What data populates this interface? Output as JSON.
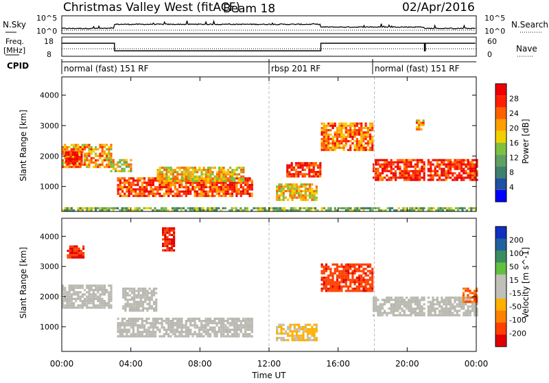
{
  "header": {
    "title": "Christmas Valley West (fitACF)",
    "beam": "Beam 18",
    "date": "02/Apr/2016"
  },
  "top_panels": {
    "nsky_label": "N.Sky",
    "nsearch_label": "N.Search",
    "nsky_ticks": [
      "10^5",
      "10^0"
    ],
    "nsearch_ticks": [
      "10^5",
      "10^0"
    ],
    "freq_label": "Freq.",
    "freq_unit": "[MHz]",
    "freq_ticks": [
      "18",
      "8"
    ],
    "nave_label": "Nave",
    "nave_ticks": [
      "60",
      "0"
    ],
    "cpid_label": "CPID",
    "cpid_segments": [
      {
        "label": "normal (fast) 151 RF",
        "start_hour": 0,
        "end_hour": 12
      },
      {
        "label": "rbsp 201 RF",
        "start_hour": 12,
        "end_hour": 18
      },
      {
        "label": "normal (fast) 151 RF",
        "start_hour": 18,
        "end_hour": 24
      }
    ]
  },
  "x_axis": {
    "label": "Time UT",
    "ticks": [
      "00:00",
      "04:00",
      "08:00",
      "12:00",
      "16:00",
      "20:00",
      "00:00"
    ]
  },
  "colors": {
    "power_scale": [
      "#0000ff",
      "#2050a0",
      "#3f8070",
      "#60a060",
      "#80c040",
      "#f0d000",
      "#ffa000",
      "#ff6000",
      "#ff2000",
      "#ee0000"
    ],
    "velocity_scale": [
      "#e00000",
      "#ff4000",
      "#ff8000",
      "#ffb000",
      "#c0c0b8",
      "#c0c0b8",
      "#60c040",
      "#3c8c60",
      "#2060a0",
      "#1030c0"
    ],
    "ground_scatter": "#b8b8b0"
  },
  "chart_data": [
    {
      "type": "heatmap",
      "name": "power",
      "ylabel": "Slant Range [km]",
      "ylim": [
        180,
        4600
      ],
      "yticks": [
        1000,
        2000,
        3000,
        4000
      ],
      "colorbar_label": "Power [dB]",
      "colorbar_ticks": [
        "4",
        "8",
        "12",
        "16",
        "20",
        "24",
        "28"
      ],
      "colorbar_range": [
        0,
        30
      ],
      "features": [
        {
          "t0": 0.0,
          "t1": 2.8,
          "r0": 1650,
          "r1": 2400,
          "value": 20
        },
        {
          "t0": 0.2,
          "t1": 1.2,
          "r0": 1750,
          "r1": 2150,
          "value": 28
        },
        {
          "t0": 2.8,
          "t1": 4.0,
          "r0": 1500,
          "r1": 1900,
          "value": 16
        },
        {
          "t0": 3.2,
          "t1": 11.0,
          "r0": 700,
          "r1": 1300,
          "value": 24
        },
        {
          "t0": 5.5,
          "t1": 10.5,
          "r0": 1200,
          "r1": 1650,
          "value": 18
        },
        {
          "t0": 12.4,
          "t1": 14.8,
          "r0": 550,
          "r1": 1100,
          "value": 18
        },
        {
          "t0": 13.0,
          "t1": 15.0,
          "r0": 1300,
          "r1": 1800,
          "value": 26
        },
        {
          "t0": 15.0,
          "t1": 18.0,
          "r0": 2200,
          "r1": 3100,
          "value": 22
        },
        {
          "t0": 18.0,
          "t1": 24.0,
          "r0": 1200,
          "r1": 1900,
          "value": 26
        },
        {
          "t0": 20.5,
          "t1": 21.0,
          "r0": 2900,
          "r1": 3200,
          "value": 20
        },
        {
          "t0": 0.0,
          "t1": 24.0,
          "r0": 180,
          "r1": 320,
          "value": 12
        }
      ]
    },
    {
      "type": "heatmap",
      "name": "velocity",
      "ylabel": "Slant Range [km]",
      "ylim": [
        180,
        4600
      ],
      "yticks": [
        1000,
        2000,
        3000,
        4000
      ],
      "colorbar_label": "Velocity [m s^-1]",
      "colorbar_ticks": [
        "-200",
        "-100",
        "-50",
        "-15",
        "15",
        "50",
        "100",
        "200"
      ],
      "colorbar_range": [
        -250,
        250
      ],
      "features": [
        {
          "t0": 0.0,
          "t1": 2.8,
          "r0": 1650,
          "r1": 2400,
          "value": 0,
          "ground_scatter": true
        },
        {
          "t0": 3.2,
          "t1": 11.0,
          "r0": 700,
          "r1": 1300,
          "value": 0,
          "ground_scatter": true
        },
        {
          "t0": 3.5,
          "t1": 5.5,
          "r0": 1500,
          "r1": 2300,
          "value": 0,
          "ground_scatter": true
        },
        {
          "t0": 12.4,
          "t1": 14.8,
          "r0": 550,
          "r1": 1100,
          "value": -60
        },
        {
          "t0": 15.0,
          "t1": 18.0,
          "r0": 2200,
          "r1": 3100,
          "value": -180
        },
        {
          "t0": 18.0,
          "t1": 24.0,
          "r0": 1400,
          "r1": 2000,
          "value": 0,
          "ground_scatter": true
        },
        {
          "t0": 23.2,
          "t1": 24.0,
          "r0": 1800,
          "r1": 2300,
          "value": -150
        },
        {
          "t0": 0.3,
          "t1": 1.2,
          "r0": 3300,
          "r1": 3700,
          "value": -200
        },
        {
          "t0": 5.8,
          "t1": 6.5,
          "r0": 3500,
          "r1": 4300,
          "value": -200
        }
      ]
    }
  ]
}
